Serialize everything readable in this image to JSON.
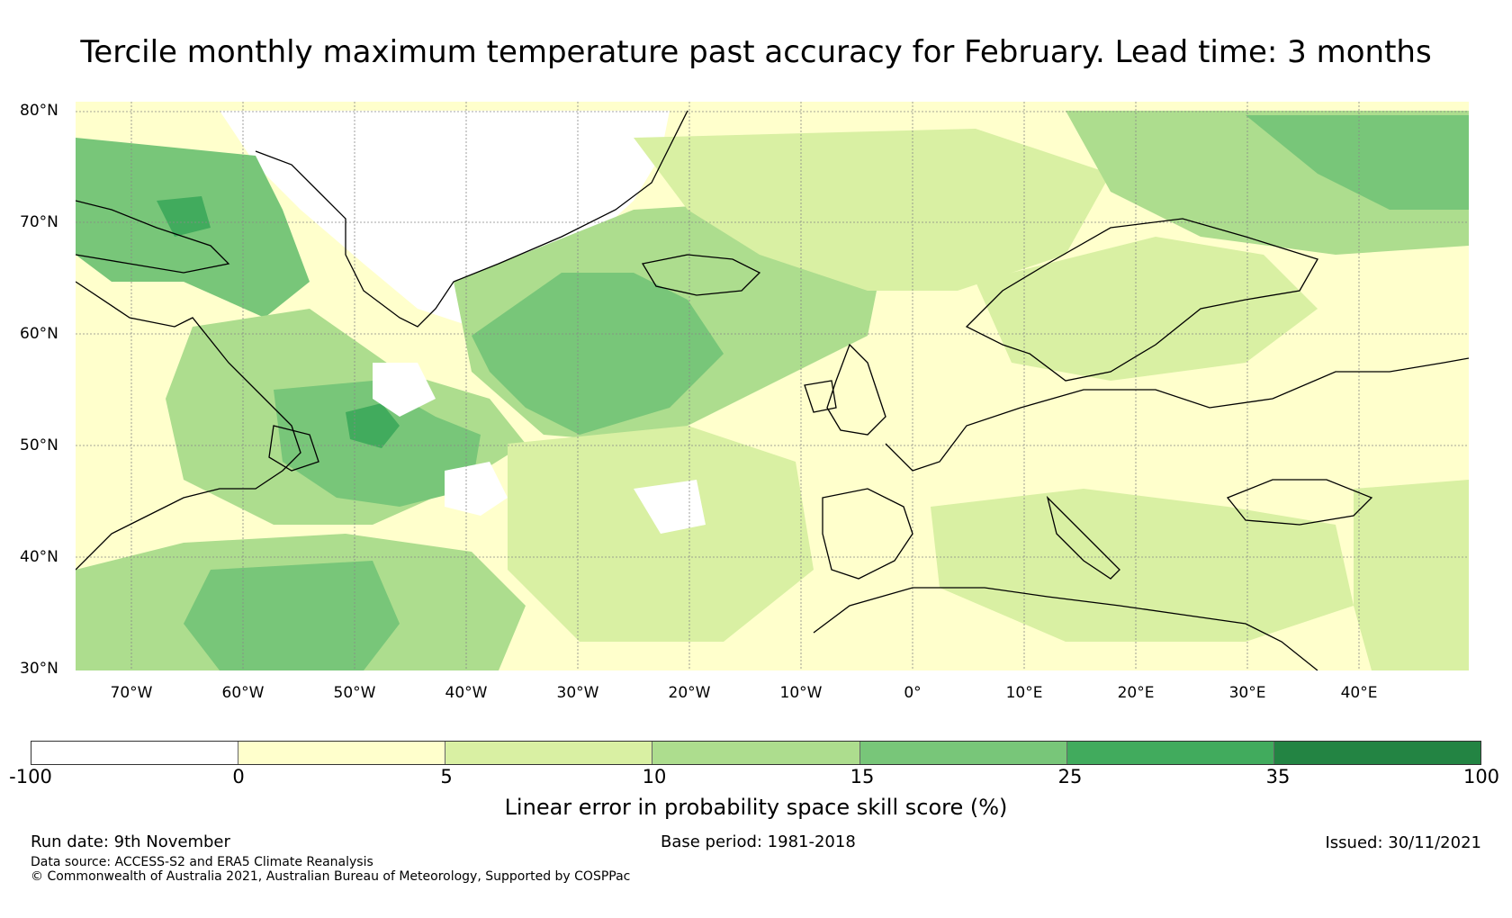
{
  "title": "Tercile monthly maximum temperature past accuracy for February. Lead time: 3 months",
  "map": {
    "lat_labels": [
      "80°N",
      "70°N",
      "60°N",
      "50°N",
      "40°N",
      "30°N"
    ],
    "lon_labels": [
      "70°W",
      "60°W",
      "50°W",
      "40°W",
      "30°W",
      "20°W",
      "10°W",
      "0°",
      "10°E",
      "20°E",
      "30°E",
      "40°E"
    ],
    "extent": {
      "lon_min": -75,
      "lon_max": 50,
      "lat_min": 30,
      "lat_max": 81
    },
    "ocean_color": "#ffffff"
  },
  "chart_data": {
    "type": "heatmap",
    "title": "Tercile monthly maximum temperature past accuracy for February. Lead time: 3 months",
    "colorbar": {
      "label": "Linear error in probability space skill score (%)",
      "ticks": [
        "-100",
        "0",
        "5",
        "10",
        "15",
        "25",
        "35",
        "100"
      ],
      "bins": [
        {
          "range": [
            -100,
            0
          ],
          "color": "#ffffff"
        },
        {
          "range": [
            0,
            5
          ],
          "color": "#ffffcc"
        },
        {
          "range": [
            5,
            10
          ],
          "color": "#d9f0a3"
        },
        {
          "range": [
            10,
            15
          ],
          "color": "#addd8e"
        },
        {
          "range": [
            15,
            25
          ],
          "color": "#78c679"
        },
        {
          "range": [
            25,
            35
          ],
          "color": "#41ab5d"
        },
        {
          "range": [
            35,
            100
          ],
          "color": "#238443"
        }
      ]
    },
    "regions": [
      {
        "name": "greenland-interior",
        "bin": "-100 to 0"
      },
      {
        "name": "canadian-arctic",
        "bin": "15 to 25"
      },
      {
        "name": "labrador-sea",
        "bin": "15 to 25"
      },
      {
        "name": "newfoundland-offshore",
        "bin": "25 to 35"
      },
      {
        "name": "north-atlantic-central",
        "bin": "15 to 25"
      },
      {
        "name": "subtropical-atlantic",
        "bin": "15 to 25"
      },
      {
        "name": "barents-sea",
        "bin": "15 to 25"
      },
      {
        "name": "scandinavia",
        "bin": "5 to 10"
      },
      {
        "name": "central-europe",
        "bin": "0 to 5"
      },
      {
        "name": "mediterranean",
        "bin": "5 to 10"
      },
      {
        "name": "north-africa",
        "bin": "0 to 5"
      }
    ]
  },
  "footer": {
    "run_date": "Run date: 9th November",
    "base_period": "Base period: 1981-2018",
    "issued": "Issued: 30/11/2021",
    "data_source": "Data source: ACCESS-S2 and ERA5 Climate Reanalysis",
    "copyright": "© Commonwealth of Australia 2021, Australian Bureau of Meteorology, Supported by COSPPac"
  }
}
